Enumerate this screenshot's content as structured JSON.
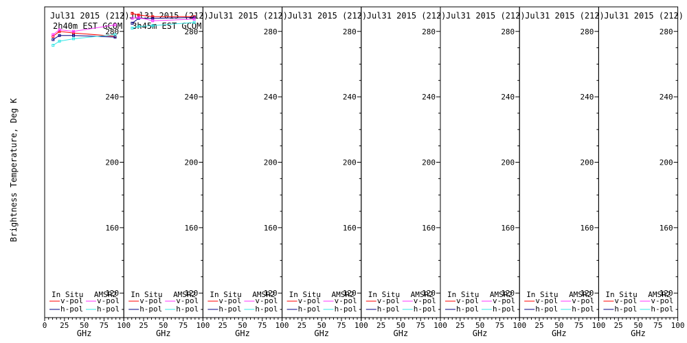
{
  "ylabel": "Brightness Temperature, Deg K",
  "legend": {
    "in_situ": "In Situ",
    "amsr2": "AMSR2",
    "vpol": "v-pol",
    "hpol": "h-pol"
  },
  "colors": {
    "insitu_v": "#ff0000",
    "insitu_h": "#000080",
    "amsr2_v": "#ff33ff",
    "amsr2_h": "#33e6e6"
  },
  "chart_data": [
    {
      "type": "line",
      "title": "Jul31 2015 (212)",
      "subtitle": "2h40m EST GCOM",
      "xlabel": "GHz",
      "ylabel": "Brightness Temperature, Deg K",
      "xlim": [
        0,
        100
      ],
      "ylim": [
        105,
        295
      ],
      "xticks": [
        "0",
        "25",
        "50",
        "75",
        "100"
      ],
      "yticks": [
        "120",
        "160",
        "200",
        "240",
        "280"
      ],
      "series": [
        {
          "key": "insitu_v",
          "x": [
            10.65,
            18.7,
            36.5,
            89
          ],
          "y": [
            277,
            280,
            279,
            277
          ]
        },
        {
          "key": "insitu_h",
          "x": [
            10.65,
            18.7,
            36.5,
            89
          ],
          "y": [
            275,
            277.5,
            277.5,
            276.5
          ]
        },
        {
          "key": "amsr2_v",
          "x": [
            10.65,
            18.7,
            36.5,
            89
          ],
          "y": [
            278,
            281,
            280,
            284
          ]
        },
        {
          "key": "amsr2_h",
          "x": [
            10.65,
            18.7,
            36.5,
            89
          ],
          "y": [
            271.5,
            274,
            275.5,
            278
          ]
        }
      ]
    },
    {
      "type": "line",
      "title": "Jul31 2015 (212)",
      "subtitle": "3h45m EST GCOM",
      "xlabel": "GHz",
      "ylabel": "",
      "xlim": [
        0,
        100
      ],
      "ylim": [
        105,
        295
      ],
      "xticks": [
        "0",
        "25",
        "50",
        "75",
        "100"
      ],
      "yticks": [
        "120",
        "160",
        "200",
        "240",
        "280"
      ],
      "series": [
        {
          "key": "insitu_v",
          "x": [
            10.65,
            18.7,
            36.5,
            89
          ],
          "y": [
            291,
            290,
            289,
            289
          ]
        },
        {
          "key": "insitu_h",
          "x": [
            10.65,
            18.7,
            36.5,
            89
          ],
          "y": [
            285,
            288,
            288,
            288.5
          ]
        },
        {
          "key": "amsr2_v",
          "x": [
            10.65,
            18.7,
            36.5,
            89
          ],
          "y": [
            288,
            288.5,
            286.5,
            287.5
          ]
        },
        {
          "key": "amsr2_h",
          "x": [
            10.65,
            18.7,
            36.5,
            89
          ],
          "y": [
            282,
            283,
            283.5,
            285.5
          ]
        }
      ]
    },
    {
      "type": "line",
      "title": "Jul31 2015 (212)",
      "subtitle": "",
      "xlabel": "GHz",
      "ylabel": "",
      "xlim": [
        0,
        100
      ],
      "ylim": [
        105,
        295
      ],
      "xticks": [
        "0",
        "25",
        "50",
        "75",
        "100"
      ],
      "yticks": [
        "120",
        "160",
        "200",
        "240",
        "280"
      ],
      "series": []
    },
    {
      "type": "line",
      "title": "Jul31 2015 (212)",
      "subtitle": "",
      "xlabel": "GHz",
      "ylabel": "",
      "xlim": [
        0,
        100
      ],
      "ylim": [
        105,
        295
      ],
      "xticks": [
        "0",
        "25",
        "50",
        "75",
        "100"
      ],
      "yticks": [
        "120",
        "160",
        "200",
        "240",
        "280"
      ],
      "series": []
    },
    {
      "type": "line",
      "title": "Jul31 2015 (212)",
      "subtitle": "",
      "xlabel": "GHz",
      "ylabel": "",
      "xlim": [
        0,
        100
      ],
      "ylim": [
        105,
        295
      ],
      "xticks": [
        "0",
        "25",
        "50",
        "75",
        "100"
      ],
      "yticks": [
        "120",
        "160",
        "200",
        "240",
        "280"
      ],
      "series": []
    },
    {
      "type": "line",
      "title": "Jul31 2015 (212)",
      "subtitle": "",
      "xlabel": "GHz",
      "ylabel": "",
      "xlim": [
        0,
        100
      ],
      "ylim": [
        105,
        295
      ],
      "xticks": [
        "0",
        "25",
        "50",
        "75",
        "100"
      ],
      "yticks": [
        "120",
        "160",
        "200",
        "240",
        "280"
      ],
      "series": []
    },
    {
      "type": "line",
      "title": "Jul31 2015 (212)",
      "subtitle": "",
      "xlabel": "GHz",
      "ylabel": "",
      "xlim": [
        0,
        100
      ],
      "ylim": [
        105,
        295
      ],
      "xticks": [
        "0",
        "25",
        "50",
        "75",
        "100"
      ],
      "yticks": [
        "120",
        "160",
        "200",
        "240",
        "280"
      ],
      "series": []
    },
    {
      "type": "line",
      "title": "Jul31 2015 (212)",
      "subtitle": "",
      "xlabel": "GHz",
      "ylabel": "",
      "xlim": [
        0,
        100
      ],
      "ylim": [
        105,
        295
      ],
      "xticks": [
        "0",
        "25",
        "50",
        "75",
        "100"
      ],
      "yticks": [
        "120",
        "160",
        "200",
        "240",
        "280"
      ],
      "series": []
    }
  ]
}
